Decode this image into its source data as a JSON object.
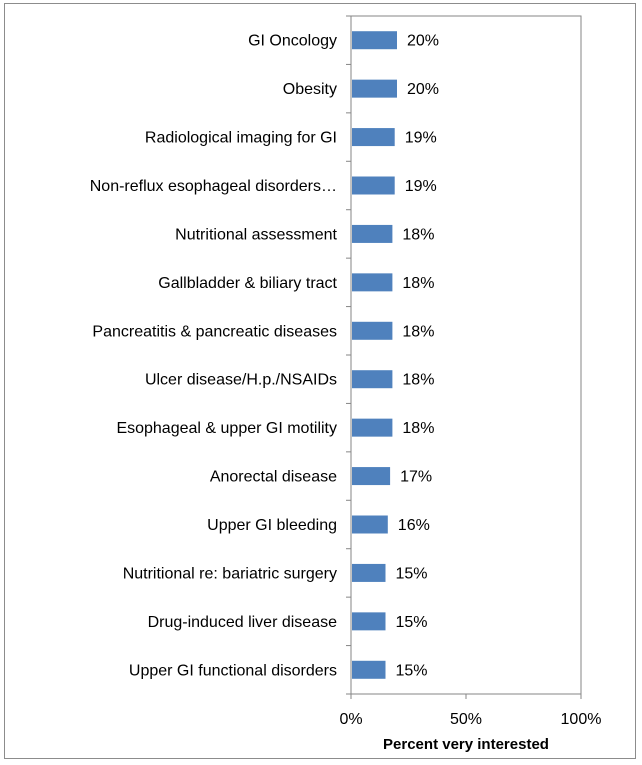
{
  "chart_data": {
    "type": "bar",
    "orientation": "horizontal",
    "categories": [
      "GI Oncology",
      "Obesity",
      "Radiological imaging for GI",
      "Non-reflux esophageal disorders…",
      "Nutritional assessment",
      "Gallbladder & biliary tract",
      "Pancreatitis & pancreatic diseases",
      "Ulcer disease/H.p./NSAIDs",
      "Esophageal & upper GI motility",
      "Anorectal disease",
      "Upper GI bleeding",
      "Nutritional re: bariatric surgery",
      "Drug-induced liver disease",
      "Upper GI functional disorders"
    ],
    "values": [
      20,
      20,
      19,
      19,
      18,
      18,
      18,
      18,
      18,
      17,
      16,
      15,
      15,
      15
    ],
    "data_labels": [
      "20%",
      "20%",
      "19%",
      "19%",
      "18%",
      "18%",
      "18%",
      "18%",
      "18%",
      "17%",
      "16%",
      "15%",
      "15%",
      "15%"
    ],
    "xlabel": "Percent very interested",
    "ylabel": "",
    "xlim": [
      0,
      100
    ],
    "x_ticks": [
      {
        "value": 0,
        "label": "0%"
      },
      {
        "value": 50,
        "label": "50%"
      },
      {
        "value": 100,
        "label": "100%"
      }
    ],
    "grid": false,
    "legend": "none",
    "colors": {
      "bar": "#4f81bd",
      "axis": "#868686",
      "frame": "#8c8c8c"
    }
  }
}
